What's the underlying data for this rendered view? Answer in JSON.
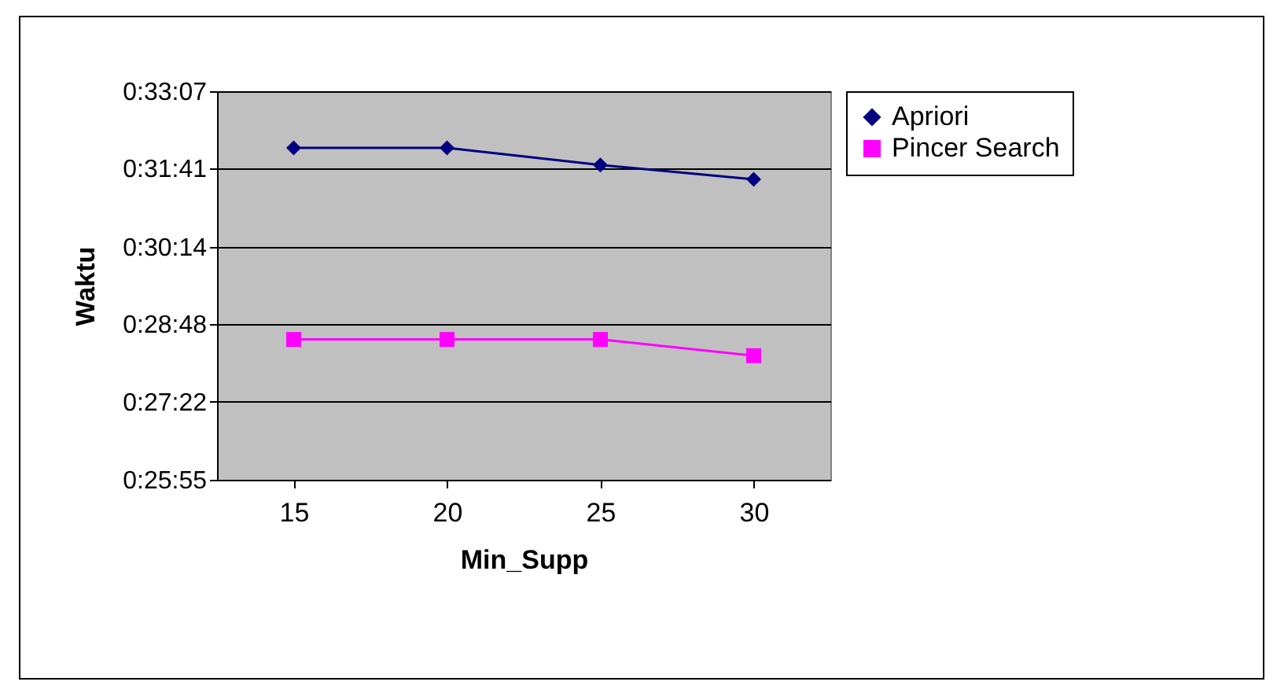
{
  "chart_data": {
    "type": "line",
    "xlabel": "Min_Supp",
    "ylabel": "Waktu",
    "categories": [
      "15",
      "20",
      "25",
      "30"
    ],
    "series": [
      {
        "name": "Apriori",
        "color": "#000080",
        "marker": "diamond",
        "values": [
          1924,
          1924,
          1905,
          1889
        ]
      },
      {
        "name": "Pincer Search",
        "color": "#ff00ff",
        "marker": "square",
        "values": [
          1711,
          1711,
          1711,
          1693
        ]
      }
    ],
    "ylim": [
      1555,
      1987
    ],
    "yticks": [
      {
        "value": 1555,
        "label": "0:25:55"
      },
      {
        "value": 1642,
        "label": "0:27:22"
      },
      {
        "value": 1728,
        "label": "0:28:48"
      },
      {
        "value": 1814,
        "label": "0:30:14"
      },
      {
        "value": 1901,
        "label": "0:31:41"
      },
      {
        "value": 1987,
        "label": "0:33:07"
      }
    ],
    "grid": "y",
    "legend": "right"
  }
}
